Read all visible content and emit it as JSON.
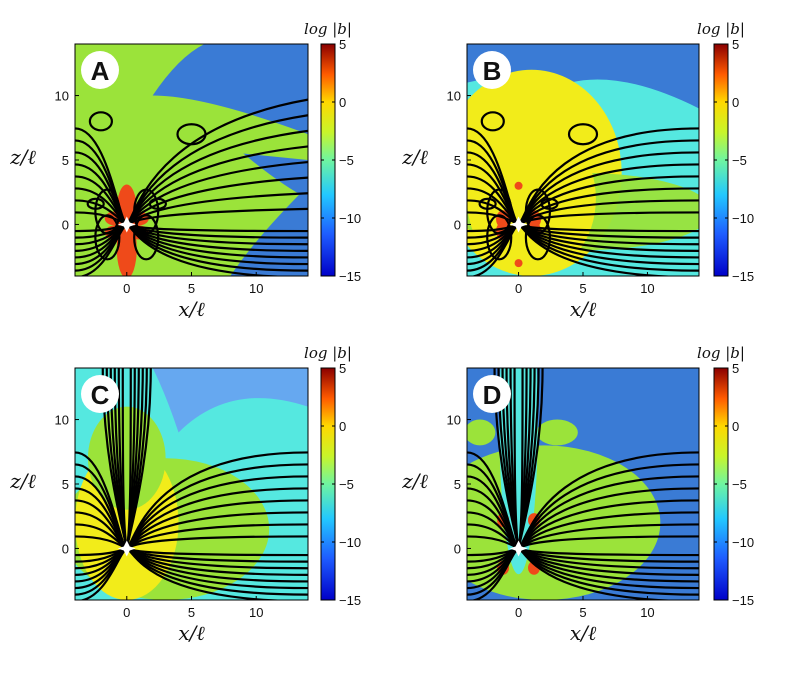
{
  "chart_data": [
    {
      "type": "heatmap",
      "panel_label": "A",
      "xlabel": "x/ℓ",
      "ylabel": "z/ℓ",
      "xlim": [
        -4,
        14
      ],
      "ylim": [
        -4,
        14
      ],
      "x_ticks": [
        "0",
        "5",
        "10"
      ],
      "y_ticks": [
        "0",
        "5",
        "10"
      ],
      "colorbar": {
        "title": "log |b|",
        "range": [
          -15,
          5
        ],
        "ticks": [
          "5",
          "0",
          "−5",
          "−10",
          "−15"
        ]
      },
      "background_level": -5
    },
    {
      "type": "heatmap",
      "panel_label": "B",
      "xlabel": "x/ℓ",
      "ylabel": "z/ℓ",
      "xlim": [
        -4,
        14
      ],
      "ylim": [
        -4,
        14
      ],
      "x_ticks": [
        "0",
        "5",
        "10"
      ],
      "y_ticks": [
        "0",
        "5",
        "10"
      ],
      "colorbar": {
        "title": "log |b|",
        "range": [
          -15,
          5
        ],
        "ticks": [
          "5",
          "0",
          "−5",
          "−10",
          "−15"
        ]
      },
      "background_level": -6
    },
    {
      "type": "heatmap",
      "panel_label": "C",
      "xlabel": "x/ℓ",
      "ylabel": "z/ℓ",
      "xlim": [
        -4,
        14
      ],
      "ylim": [
        -4,
        14
      ],
      "x_ticks": [
        "0",
        "5",
        "10"
      ],
      "y_ticks": [
        "0",
        "5",
        "10"
      ],
      "colorbar": {
        "title": "log |b|",
        "range": [
          -15,
          5
        ],
        "ticks": [
          "5",
          "0",
          "−5",
          "−10",
          "−15"
        ]
      },
      "background_level": -7
    },
    {
      "type": "heatmap",
      "panel_label": "D",
      "xlabel": "x/ℓ",
      "ylabel": "z/ℓ",
      "xlim": [
        -4,
        14
      ],
      "ylim": [
        -4,
        14
      ],
      "x_ticks": [
        "0",
        "5",
        "10"
      ],
      "y_ticks": [
        "0",
        "5",
        "10"
      ],
      "colorbar": {
        "title": "log |b|",
        "range": [
          -15,
          5
        ],
        "ticks": [
          "5",
          "0",
          "−5",
          "−10",
          "−15"
        ]
      },
      "background_level": -9
    }
  ],
  "colors": {
    "deep_blue": "#3a7bd5",
    "cyan": "#55e8e0",
    "green": "#9be33a",
    "yellow": "#f2ec1a",
    "orange_red": "#ef4a1a"
  }
}
